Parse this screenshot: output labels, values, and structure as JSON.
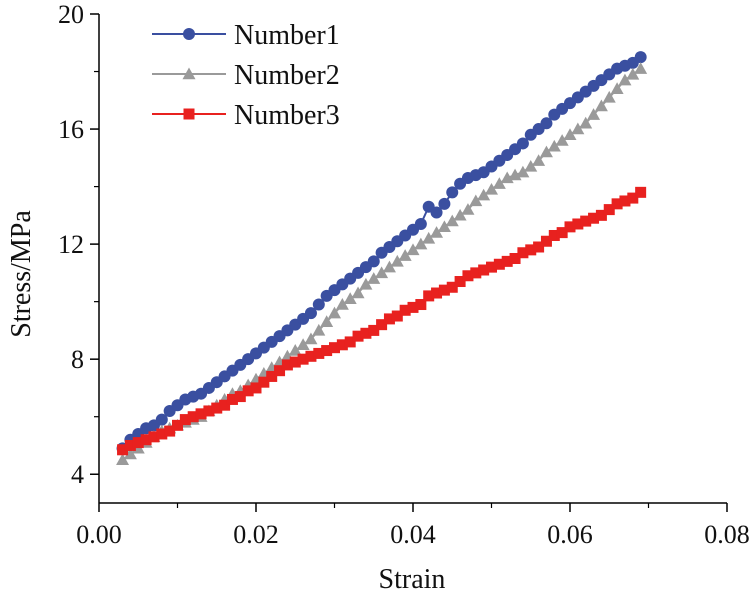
{
  "chart_data": {
    "type": "line",
    "title": "",
    "xlabel": "Strain",
    "ylabel": "Stress/MPa",
    "xlim": [
      0.0,
      0.08
    ],
    "ylim": [
      3.0,
      20.0
    ],
    "xticks": [
      0.0,
      0.02,
      0.04,
      0.06,
      0.08
    ],
    "xtick_labels": [
      "0.00",
      "0.02",
      "0.04",
      "0.06",
      "0.08"
    ],
    "yticks": [
      4,
      8,
      12,
      16,
      20
    ],
    "ytick_labels": [
      "4",
      "8",
      "12",
      "16",
      "20"
    ],
    "grid": false,
    "legend_position": "top-left",
    "series": [
      {
        "name": "Number1",
        "color": "#3a4fa0",
        "marker": "circle",
        "x": [
          0.003,
          0.004,
          0.005,
          0.006,
          0.007,
          0.008,
          0.009,
          0.01,
          0.011,
          0.012,
          0.013,
          0.014,
          0.015,
          0.016,
          0.017,
          0.018,
          0.019,
          0.02,
          0.021,
          0.022,
          0.023,
          0.024,
          0.025,
          0.026,
          0.027,
          0.028,
          0.029,
          0.03,
          0.031,
          0.032,
          0.033,
          0.034,
          0.035,
          0.036,
          0.037,
          0.038,
          0.039,
          0.04,
          0.041,
          0.042,
          0.043,
          0.044,
          0.045,
          0.046,
          0.047,
          0.048,
          0.049,
          0.05,
          0.051,
          0.052,
          0.053,
          0.054,
          0.055,
          0.056,
          0.057,
          0.058,
          0.059,
          0.06,
          0.061,
          0.062,
          0.063,
          0.064,
          0.065,
          0.066,
          0.067,
          0.068,
          0.069
        ],
        "y": [
          4.9,
          5.2,
          5.4,
          5.6,
          5.7,
          5.9,
          6.2,
          6.4,
          6.6,
          6.7,
          6.8,
          7.0,
          7.2,
          7.4,
          7.6,
          7.8,
          8.0,
          8.2,
          8.4,
          8.6,
          8.8,
          9.0,
          9.2,
          9.4,
          9.6,
          9.9,
          10.2,
          10.4,
          10.6,
          10.8,
          11.0,
          11.2,
          11.4,
          11.7,
          11.9,
          12.1,
          12.3,
          12.5,
          12.7,
          13.3,
          13.1,
          13.4,
          13.8,
          14.1,
          14.3,
          14.4,
          14.5,
          14.7,
          14.9,
          15.1,
          15.3,
          15.5,
          15.8,
          16.0,
          16.2,
          16.5,
          16.7,
          16.9,
          17.1,
          17.3,
          17.5,
          17.7,
          17.9,
          18.1,
          18.2,
          18.3,
          18.5
        ]
      },
      {
        "name": "Number2",
        "color": "#9a9a9a",
        "marker": "triangle",
        "x": [
          0.003,
          0.004,
          0.005,
          0.006,
          0.007,
          0.008,
          0.009,
          0.01,
          0.011,
          0.012,
          0.013,
          0.014,
          0.015,
          0.016,
          0.017,
          0.018,
          0.019,
          0.02,
          0.021,
          0.022,
          0.023,
          0.024,
          0.025,
          0.026,
          0.027,
          0.028,
          0.029,
          0.03,
          0.031,
          0.032,
          0.033,
          0.034,
          0.035,
          0.036,
          0.037,
          0.038,
          0.039,
          0.04,
          0.041,
          0.042,
          0.043,
          0.044,
          0.045,
          0.046,
          0.047,
          0.048,
          0.049,
          0.05,
          0.051,
          0.052,
          0.053,
          0.054,
          0.055,
          0.056,
          0.057,
          0.058,
          0.059,
          0.06,
          0.061,
          0.062,
          0.063,
          0.064,
          0.065,
          0.066,
          0.067,
          0.068,
          0.069
        ],
        "y": [
          4.5,
          4.7,
          4.9,
          5.1,
          5.3,
          5.5,
          5.6,
          5.7,
          5.8,
          5.9,
          6.0,
          6.2,
          6.4,
          6.6,
          6.8,
          6.9,
          7.1,
          7.3,
          7.5,
          7.7,
          7.9,
          8.1,
          8.3,
          8.5,
          8.7,
          9.0,
          9.3,
          9.6,
          9.9,
          10.1,
          10.3,
          10.6,
          10.8,
          11.0,
          11.2,
          11.4,
          11.6,
          11.8,
          12.0,
          12.2,
          12.4,
          12.6,
          12.8,
          13.0,
          13.2,
          13.5,
          13.7,
          13.9,
          14.1,
          14.3,
          14.4,
          14.5,
          14.7,
          14.9,
          15.2,
          15.4,
          15.6,
          15.8,
          16.0,
          16.2,
          16.5,
          16.8,
          17.1,
          17.4,
          17.7,
          17.9,
          18.1
        ]
      },
      {
        "name": "Number3",
        "color": "#e8211f",
        "marker": "square",
        "x": [
          0.003,
          0.004,
          0.005,
          0.006,
          0.007,
          0.008,
          0.009,
          0.01,
          0.011,
          0.012,
          0.013,
          0.014,
          0.015,
          0.016,
          0.017,
          0.018,
          0.019,
          0.02,
          0.021,
          0.022,
          0.023,
          0.024,
          0.025,
          0.026,
          0.027,
          0.028,
          0.029,
          0.03,
          0.031,
          0.032,
          0.033,
          0.034,
          0.035,
          0.036,
          0.037,
          0.038,
          0.039,
          0.04,
          0.041,
          0.042,
          0.043,
          0.044,
          0.045,
          0.046,
          0.047,
          0.048,
          0.049,
          0.05,
          0.051,
          0.052,
          0.053,
          0.054,
          0.055,
          0.056,
          0.057,
          0.058,
          0.059,
          0.06,
          0.061,
          0.062,
          0.063,
          0.064,
          0.065,
          0.066,
          0.067,
          0.068,
          0.069
        ],
        "y": [
          4.85,
          5.0,
          5.1,
          5.2,
          5.3,
          5.4,
          5.5,
          5.7,
          5.9,
          6.0,
          6.1,
          6.2,
          6.3,
          6.4,
          6.6,
          6.7,
          6.9,
          7.0,
          7.2,
          7.4,
          7.6,
          7.8,
          7.9,
          8.0,
          8.1,
          8.2,
          8.3,
          8.4,
          8.5,
          8.6,
          8.8,
          8.9,
          9.0,
          9.2,
          9.4,
          9.5,
          9.7,
          9.8,
          9.9,
          10.2,
          10.3,
          10.4,
          10.5,
          10.7,
          10.9,
          11.0,
          11.1,
          11.2,
          11.3,
          11.4,
          11.5,
          11.7,
          11.8,
          11.9,
          12.1,
          12.3,
          12.4,
          12.6,
          12.7,
          12.8,
          12.9,
          13.0,
          13.2,
          13.4,
          13.5,
          13.6,
          13.8
        ]
      }
    ]
  }
}
